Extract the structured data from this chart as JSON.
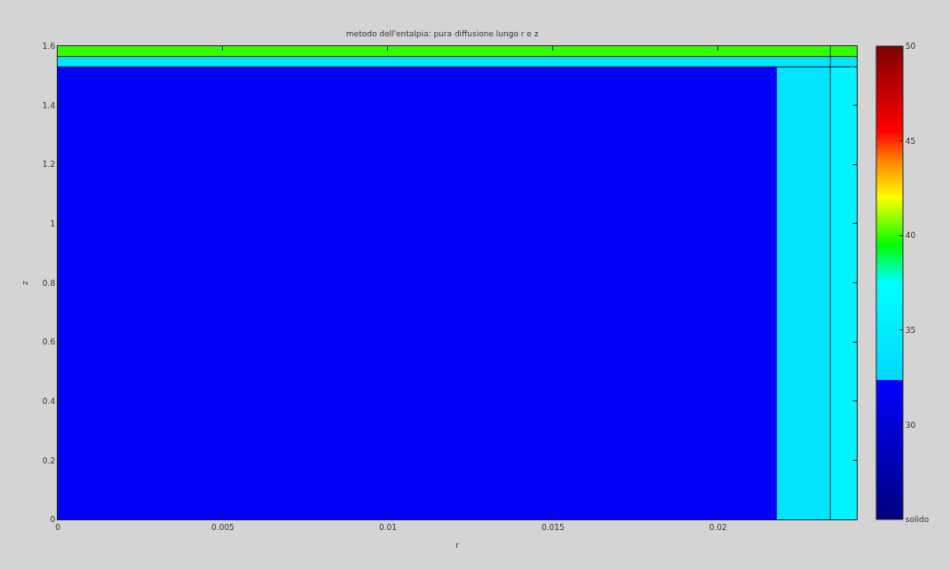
{
  "chart_data": {
    "type": "heatmap",
    "title": "metodo dell'entalpia: pura diffusione lungo r e z",
    "xlabel": "r",
    "ylabel": "z",
    "cells": [
      [
        40,
        40,
        40,
        40,
        40,
        40,
        40,
        40,
        40,
        40,
        40,
        40,
        40,
        40,
        40,
        40,
        40,
        40,
        40,
        40,
        40,
        40,
        40,
        40,
        40,
        40,
        40,
        40,
        40,
        40
      ],
      [
        34,
        34,
        34,
        34,
        34,
        34,
        34,
        34,
        34,
        34,
        34,
        34,
        34,
        34,
        34,
        34,
        34,
        34,
        34,
        34,
        34,
        34,
        34,
        34,
        34,
        34,
        34,
        34,
        34,
        34
      ],
      [
        32,
        32,
        32,
        32,
        32,
        32,
        32,
        32,
        32,
        32,
        32,
        32,
        32,
        32,
        32,
        32,
        32,
        32,
        32,
        32,
        32,
        32,
        32,
        32,
        32,
        32,
        32,
        34,
        34,
        36
      ],
      [
        32,
        32,
        32,
        32,
        32,
        32,
        32,
        32,
        32,
        32,
        32,
        32,
        32,
        32,
        32,
        32,
        32,
        32,
        32,
        32,
        32,
        32,
        32,
        32,
        32,
        32,
        32,
        34,
        34,
        36
      ],
      [
        32,
        32,
        32,
        32,
        32,
        32,
        32,
        32,
        32,
        32,
        32,
        32,
        32,
        32,
        32,
        32,
        32,
        32,
        32,
        32,
        32,
        32,
        32,
        32,
        32,
        32,
        32,
        34,
        34,
        36
      ],
      [
        32,
        32,
        32,
        32,
        32,
        32,
        32,
        32,
        32,
        32,
        32,
        32,
        32,
        32,
        32,
        32,
        32,
        32,
        32,
        32,
        32,
        32,
        32,
        32,
        32,
        32,
        32,
        34,
        34,
        36
      ],
      [
        32,
        32,
        32,
        32,
        32,
        32,
        32,
        32,
        32,
        32,
        32,
        32,
        32,
        32,
        32,
        32,
        32,
        32,
        32,
        32,
        32,
        32,
        32,
        32,
        32,
        32,
        32,
        34,
        34,
        36
      ],
      [
        32,
        32,
        32,
        32,
        32,
        32,
        32,
        32,
        32,
        32,
        32,
        32,
        32,
        32,
        32,
        32,
        32,
        32,
        32,
        32,
        32,
        32,
        32,
        32,
        32,
        32,
        32,
        34,
        34,
        36
      ],
      [
        32,
        32,
        32,
        32,
        32,
        32,
        32,
        32,
        32,
        32,
        32,
        32,
        32,
        32,
        32,
        32,
        32,
        32,
        32,
        32,
        32,
        32,
        32,
        32,
        32,
        32,
        32,
        34,
        34,
        36
      ],
      [
        32,
        32,
        32,
        32,
        32,
        32,
        32,
        32,
        32,
        32,
        32,
        32,
        32,
        32,
        32,
        32,
        32,
        32,
        32,
        32,
        32,
        32,
        32,
        32,
        32,
        32,
        32,
        34,
        34,
        36
      ],
      [
        32,
        32,
        32,
        32,
        32,
        32,
        32,
        32,
        32,
        32,
        32,
        32,
        32,
        32,
        32,
        32,
        32,
        32,
        32,
        32,
        32,
        32,
        32,
        32,
        32,
        32,
        32,
        34,
        34,
        36
      ],
      [
        32,
        32,
        32,
        32,
        32,
        32,
        32,
        32,
        32,
        32,
        32,
        32,
        32,
        32,
        32,
        32,
        32,
        32,
        32,
        32,
        32,
        32,
        32,
        32,
        32,
        32,
        32,
        34,
        34,
        36
      ],
      [
        32,
        32,
        32,
        32,
        32,
        32,
        32,
        32,
        32,
        32,
        32,
        32,
        32,
        32,
        32,
        32,
        32,
        32,
        32,
        32,
        32,
        32,
        32,
        32,
        32,
        32,
        32,
        34,
        34,
        36
      ],
      [
        32,
        32,
        32,
        32,
        32,
        32,
        32,
        32,
        32,
        32,
        32,
        32,
        32,
        32,
        32,
        32,
        32,
        32,
        32,
        32,
        32,
        32,
        32,
        32,
        32,
        32,
        32,
        34,
        34,
        36
      ],
      [
        32,
        32,
        32,
        32,
        32,
        32,
        32,
        32,
        32,
        32,
        32,
        32,
        32,
        32,
        32,
        32,
        32,
        32,
        32,
        32,
        32,
        32,
        32,
        32,
        32,
        32,
        32,
        34,
        34,
        36
      ],
      [
        32,
        32,
        32,
        32,
        32,
        32,
        32,
        32,
        32,
        32,
        32,
        32,
        32,
        32,
        32,
        32,
        32,
        32,
        32,
        32,
        32,
        32,
        32,
        32,
        32,
        32,
        32,
        34,
        34,
        36
      ],
      [
        32,
        32,
        32,
        32,
        32,
        32,
        32,
        32,
        32,
        32,
        32,
        32,
        32,
        32,
        32,
        32,
        32,
        32,
        32,
        32,
        32,
        32,
        32,
        32,
        32,
        32,
        32,
        34,
        34,
        36
      ],
      [
        32,
        32,
        32,
        32,
        32,
        32,
        32,
        32,
        32,
        32,
        32,
        32,
        32,
        32,
        32,
        32,
        32,
        32,
        32,
        32,
        32,
        32,
        32,
        32,
        32,
        32,
        32,
        34,
        34,
        36
      ],
      [
        32,
        32,
        32,
        32,
        32,
        32,
        32,
        32,
        32,
        32,
        32,
        32,
        32,
        32,
        32,
        32,
        32,
        32,
        32,
        32,
        32,
        32,
        32,
        32,
        32,
        32,
        32,
        34,
        34,
        36
      ],
      [
        32,
        32,
        32,
        32,
        32,
        32,
        32,
        32,
        32,
        32,
        32,
        32,
        32,
        32,
        32,
        32,
        32,
        32,
        32,
        32,
        32,
        32,
        32,
        32,
        32,
        32,
        32,
        34,
        34,
        36
      ],
      [
        32,
        32,
        32,
        32,
        32,
        32,
        32,
        32,
        32,
        32,
        32,
        32,
        32,
        32,
        32,
        32,
        32,
        32,
        32,
        32,
        32,
        32,
        32,
        32,
        32,
        32,
        32,
        34,
        34,
        36
      ],
      [
        32,
        32,
        32,
        32,
        32,
        32,
        32,
        32,
        32,
        32,
        32,
        32,
        32,
        32,
        32,
        32,
        32,
        32,
        32,
        32,
        32,
        32,
        32,
        32,
        32,
        32,
        32,
        34,
        34,
        36
      ],
      [
        32,
        32,
        32,
        32,
        32,
        32,
        32,
        32,
        32,
        32,
        32,
        32,
        32,
        32,
        32,
        32,
        32,
        32,
        32,
        32,
        32,
        32,
        32,
        32,
        32,
        32,
        32,
        34,
        34,
        36
      ],
      [
        32,
        32,
        32,
        32,
        32,
        32,
        32,
        32,
        32,
        32,
        32,
        32,
        32,
        32,
        32,
        32,
        32,
        32,
        32,
        32,
        32,
        32,
        32,
        32,
        32,
        32,
        32,
        34,
        34,
        36
      ],
      [
        32,
        32,
        32,
        32,
        32,
        32,
        32,
        32,
        32,
        32,
        32,
        32,
        32,
        32,
        32,
        32,
        32,
        32,
        32,
        32,
        32,
        32,
        32,
        32,
        32,
        32,
        32,
        34,
        34,
        36
      ],
      [
        32,
        32,
        32,
        32,
        32,
        32,
        32,
        32,
        32,
        32,
        32,
        32,
        32,
        32,
        32,
        32,
        32,
        32,
        32,
        32,
        32,
        32,
        32,
        32,
        32,
        32,
        32,
        34,
        34,
        36
      ],
      [
        32,
        32,
        32,
        32,
        32,
        32,
        32,
        32,
        32,
        32,
        32,
        32,
        32,
        32,
        32,
        32,
        32,
        32,
        32,
        32,
        32,
        32,
        32,
        32,
        32,
        32,
        32,
        34,
        34,
        36
      ],
      [
        32,
        32,
        32,
        32,
        32,
        32,
        32,
        32,
        32,
        32,
        32,
        32,
        32,
        32,
        32,
        32,
        32,
        32,
        32,
        32,
        32,
        32,
        32,
        32,
        32,
        32,
        32,
        34,
        34,
        36
      ],
      [
        32,
        32,
        32,
        32,
        32,
        32,
        32,
        32,
        32,
        32,
        32,
        32,
        32,
        32,
        32,
        32,
        32,
        32,
        32,
        32,
        32,
        32,
        32,
        32,
        32,
        32,
        32,
        34,
        34,
        36
      ],
      [
        32,
        32,
        32,
        32,
        32,
        32,
        32,
        32,
        32,
        32,
        32,
        32,
        32,
        32,
        32,
        32,
        32,
        32,
        32,
        32,
        32,
        32,
        32,
        32,
        32,
        32,
        32,
        34,
        34,
        36
      ],
      [
        32,
        32,
        32,
        32,
        32,
        32,
        32,
        32,
        32,
        32,
        32,
        32,
        32,
        32,
        32,
        32,
        32,
        32,
        32,
        32,
        32,
        32,
        32,
        32,
        32,
        32,
        32,
        34,
        34,
        36
      ],
      [
        32,
        32,
        32,
        32,
        32,
        32,
        32,
        32,
        32,
        32,
        32,
        32,
        32,
        32,
        32,
        32,
        32,
        32,
        32,
        32,
        32,
        32,
        32,
        32,
        32,
        32,
        32,
        34,
        34,
        36
      ],
      [
        32,
        32,
        32,
        32,
        32,
        32,
        32,
        32,
        32,
        32,
        32,
        32,
        32,
        32,
        32,
        32,
        32,
        32,
        32,
        32,
        32,
        32,
        32,
        32,
        32,
        32,
        32,
        34,
        34,
        36
      ],
      [
        32,
        32,
        32,
        32,
        32,
        32,
        32,
        32,
        32,
        32,
        32,
        32,
        32,
        32,
        32,
        32,
        32,
        32,
        32,
        32,
        32,
        32,
        32,
        32,
        32,
        32,
        32,
        34,
        34,
        36
      ],
      [
        32,
        32,
        32,
        32,
        32,
        32,
        32,
        32,
        32,
        32,
        32,
        32,
        32,
        32,
        32,
        32,
        32,
        32,
        32,
        32,
        32,
        32,
        32,
        32,
        32,
        32,
        32,
        34,
        34,
        36
      ],
      [
        32,
        32,
        32,
        32,
        32,
        32,
        32,
        32,
        32,
        32,
        32,
        32,
        32,
        32,
        32,
        32,
        32,
        32,
        32,
        32,
        32,
        32,
        32,
        32,
        32,
        32,
        32,
        34,
        34,
        36
      ],
      [
        32,
        32,
        32,
        32,
        32,
        32,
        32,
        32,
        32,
        32,
        32,
        32,
        32,
        32,
        32,
        32,
        32,
        32,
        32,
        32,
        32,
        32,
        32,
        32,
        32,
        32,
        32,
        34,
        34,
        36
      ],
      [
        32,
        32,
        32,
        32,
        32,
        32,
        32,
        32,
        32,
        32,
        32,
        32,
        32,
        32,
        32,
        32,
        32,
        32,
        32,
        32,
        32,
        32,
        32,
        32,
        32,
        32,
        32,
        34,
        34,
        36
      ],
      [
        32,
        32,
        32,
        32,
        32,
        32,
        32,
        32,
        32,
        32,
        32,
        32,
        32,
        32,
        32,
        32,
        32,
        32,
        32,
        32,
        32,
        32,
        32,
        32,
        32,
        32,
        32,
        34,
        34,
        36
      ],
      [
        32,
        32,
        32,
        32,
        32,
        32,
        32,
        32,
        32,
        32,
        32,
        32,
        32,
        32,
        32,
        32,
        32,
        32,
        32,
        32,
        32,
        32,
        32,
        32,
        32,
        32,
        32,
        34,
        34,
        36
      ],
      [
        32,
        32,
        32,
        32,
        32,
        32,
        32,
        32,
        32,
        32,
        32,
        32,
        32,
        32,
        32,
        32,
        32,
        32,
        32,
        32,
        32,
        32,
        32,
        32,
        32,
        32,
        32,
        34,
        34,
        36
      ],
      [
        32,
        32,
        32,
        32,
        32,
        32,
        32,
        32,
        32,
        32,
        32,
        32,
        32,
        32,
        32,
        32,
        32,
        32,
        32,
        32,
        32,
        32,
        32,
        32,
        32,
        32,
        32,
        34,
        34,
        36
      ],
      [
        32,
        32,
        32,
        32,
        32,
        32,
        32,
        32,
        32,
        32,
        32,
        32,
        32,
        32,
        32,
        32,
        32,
        32,
        32,
        32,
        32,
        32,
        32,
        32,
        32,
        32,
        32,
        34,
        34,
        36
      ],
      [
        32,
        32,
        32,
        32,
        32,
        32,
        32,
        32,
        32,
        32,
        32,
        32,
        32,
        32,
        32,
        32,
        32,
        32,
        32,
        32,
        32,
        32,
        32,
        32,
        32,
        32,
        32,
        34,
        34,
        36
      ],
      [
        32,
        32,
        32,
        32,
        32,
        32,
        32,
        32,
        32,
        32,
        32,
        32,
        32,
        32,
        32,
        32,
        32,
        32,
        32,
        32,
        32,
        32,
        32,
        32,
        32,
        32,
        32,
        34,
        34,
        36
      ],
      [
        32,
        32,
        32,
        32,
        32,
        32,
        32,
        32,
        32,
        32,
        32,
        32,
        32,
        32,
        32,
        32,
        32,
        32,
        32,
        32,
        32,
        32,
        32,
        32,
        32,
        32,
        32,
        34,
        34,
        36
      ]
    ],
    "clim": [
      25,
      50
    ],
    "cticks": [
      {
        "value": 25,
        "label": "solido"
      },
      30,
      35,
      40,
      45,
      50
    ],
    "xlim": [
      0,
      0.0242
    ],
    "ylim": [
      0,
      1.6
    ],
    "xticks": [
      0,
      0.005,
      0.01,
      0.015,
      0.02
    ],
    "yticks": [
      0,
      0.2,
      0.4,
      0.6,
      0.8,
      1,
      1.2,
      1.4,
      1.6
    ],
    "ref_lines": [
      {
        "axis": "x",
        "value": 0.0234,
        "color": "#1c3c3c"
      },
      {
        "axis": "y",
        "value": 1.565,
        "color": "#1a1a1a"
      },
      {
        "axis": "y",
        "value": 1.53,
        "color": "#1a1a1a"
      }
    ]
  }
}
